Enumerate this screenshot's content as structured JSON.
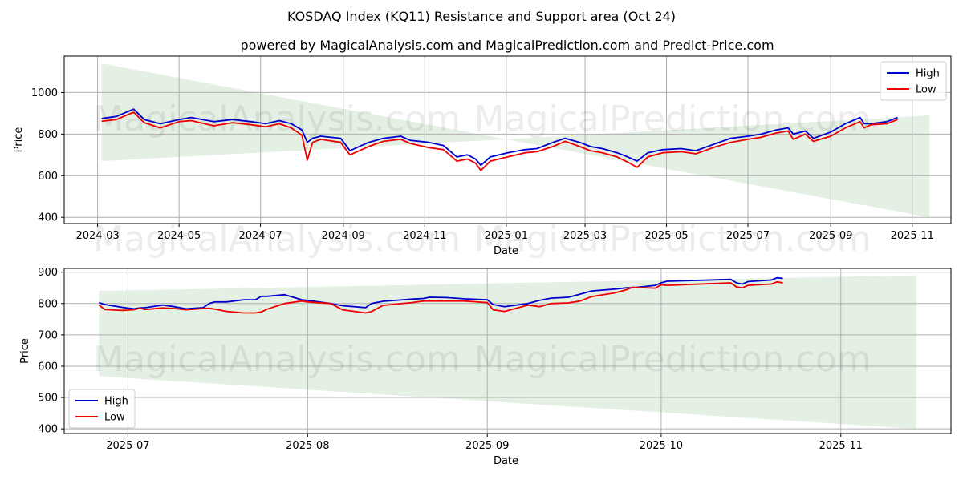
{
  "title": "KOSDAQ Index (KQ11) Resistance and Support area (Oct 24)",
  "subtitle": "powered by MagicalAnalysis.com and MagicalPrediction.com and Predict-Price.com",
  "watermarks": [
    "MagicalAnalysis.com",
    "MagicalPrediction.com"
  ],
  "colors": {
    "high": "#0000cc",
    "low": "#ee0000",
    "band": "#2e8b2e",
    "grid": "#b0b0b0"
  },
  "chart_data": [
    {
      "type": "line",
      "xlabel": "Date",
      "ylabel": "Price",
      "grid": true,
      "legend": "top-right",
      "xlim": [
        "2024-02-05",
        "2025-11-30"
      ],
      "ylim": [
        370,
        1175
      ],
      "x_ticks": [
        "2024-03",
        "2024-05",
        "2024-07",
        "2024-09",
        "2024-11",
        "2025-01",
        "2025-03",
        "2025-05",
        "2025-07",
        "2025-09",
        "2025-11"
      ],
      "y_ticks": [
        400,
        600,
        800,
        1000
      ],
      "band": {
        "x": [
          "2024-03-04",
          "2025-01-01",
          "2025-11-14"
        ],
        "upper": [
          1140,
          775,
          890
        ],
        "lower": [
          670,
          775,
          400
        ]
      },
      "series": [
        {
          "name": "High",
          "x": [
            "2024-03-04",
            "2024-03-15",
            "2024-03-28",
            "2024-04-05",
            "2024-04-17",
            "2024-05-01",
            "2024-05-10",
            "2024-05-27",
            "2024-06-10",
            "2024-06-24",
            "2024-07-05",
            "2024-07-15",
            "2024-07-24",
            "2024-08-01",
            "2024-08-05",
            "2024-08-09",
            "2024-08-15",
            "2024-08-30",
            "2024-09-06",
            "2024-09-20",
            "2024-10-01",
            "2024-10-14",
            "2024-10-21",
            "2024-11-04",
            "2024-11-15",
            "2024-11-25",
            "2024-12-03",
            "2024-12-09",
            "2024-12-13",
            "2024-12-20",
            "2025-01-02",
            "2025-01-15",
            "2025-01-24",
            "2025-02-05",
            "2025-02-14",
            "2025-02-25",
            "2025-03-05",
            "2025-03-14",
            "2025-03-25",
            "2025-04-02",
            "2025-04-09",
            "2025-04-17",
            "2025-04-28",
            "2025-05-12",
            "2025-05-23",
            "2025-06-05",
            "2025-06-18",
            "2025-07-01",
            "2025-07-11",
            "2025-07-22",
            "2025-07-31",
            "2025-08-04",
            "2025-08-13",
            "2025-08-19",
            "2025-09-01",
            "2025-09-12",
            "2025-09-23",
            "2025-09-26",
            "2025-10-01",
            "2025-10-13",
            "2025-10-21"
          ],
          "values": [
            875,
            885,
            920,
            870,
            850,
            870,
            880,
            860,
            870,
            860,
            850,
            865,
            850,
            820,
            760,
            780,
            790,
            780,
            720,
            760,
            780,
            790,
            770,
            760,
            745,
            690,
            700,
            680,
            650,
            690,
            710,
            725,
            730,
            760,
            780,
            760,
            740,
            730,
            710,
            690,
            670,
            710,
            725,
            730,
            720,
            750,
            780,
            790,
            800,
            820,
            830,
            800,
            815,
            780,
            810,
            850,
            880,
            850,
            850,
            860,
            880
          ]
        },
        {
          "name": "Low",
          "x": [
            "2024-03-04",
            "2024-03-15",
            "2024-03-28",
            "2024-04-05",
            "2024-04-17",
            "2024-05-01",
            "2024-05-10",
            "2024-05-27",
            "2024-06-10",
            "2024-06-24",
            "2024-07-05",
            "2024-07-15",
            "2024-07-24",
            "2024-08-01",
            "2024-08-05",
            "2024-08-09",
            "2024-08-15",
            "2024-08-30",
            "2024-09-06",
            "2024-09-20",
            "2024-10-01",
            "2024-10-14",
            "2024-10-21",
            "2024-11-04",
            "2024-11-15",
            "2024-11-25",
            "2024-12-03",
            "2024-12-09",
            "2024-12-13",
            "2024-12-20",
            "2025-01-02",
            "2025-01-15",
            "2025-01-24",
            "2025-02-05",
            "2025-02-14",
            "2025-02-25",
            "2025-03-05",
            "2025-03-14",
            "2025-03-25",
            "2025-04-02",
            "2025-04-09",
            "2025-04-17",
            "2025-04-28",
            "2025-05-12",
            "2025-05-23",
            "2025-06-05",
            "2025-06-18",
            "2025-07-01",
            "2025-07-11",
            "2025-07-22",
            "2025-07-31",
            "2025-08-04",
            "2025-08-13",
            "2025-08-19",
            "2025-09-01",
            "2025-09-12",
            "2025-09-23",
            "2025-09-26",
            "2025-10-01",
            "2025-10-13",
            "2025-10-21"
          ],
          "values": [
            862,
            870,
            905,
            855,
            830,
            860,
            865,
            840,
            855,
            845,
            835,
            850,
            830,
            795,
            675,
            760,
            775,
            760,
            700,
            740,
            765,
            775,
            755,
            735,
            725,
            670,
            680,
            660,
            625,
            670,
            690,
            710,
            715,
            740,
            765,
            740,
            720,
            710,
            690,
            665,
            640,
            690,
            710,
            715,
            705,
            735,
            760,
            775,
            785,
            805,
            815,
            775,
            800,
            765,
            790,
            830,
            860,
            830,
            845,
            850,
            870
          ]
        }
      ]
    },
    {
      "type": "line",
      "xlabel": "Date",
      "ylabel": "Price",
      "grid": true,
      "legend": "bottom-left",
      "xlim": [
        "2025-06-20",
        "2025-11-20"
      ],
      "ylim": [
        385,
        912
      ],
      "x_ticks": [
        "2025-07",
        "2025-08",
        "2025-09",
        "2025-10",
        "2025-11"
      ],
      "y_ticks": [
        400,
        500,
        600,
        700,
        800,
        900
      ],
      "band": {
        "x": [
          "2025-06-26",
          "2025-11-14"
        ],
        "upper": [
          840,
          890
        ],
        "lower": [
          568,
          400
        ]
      },
      "series": [
        {
          "name": "High",
          "x": [
            "2025-06-26",
            "2025-06-27",
            "2025-06-30",
            "2025-07-02",
            "2025-07-03",
            "2025-07-04",
            "2025-07-07",
            "2025-07-09",
            "2025-07-11",
            "2025-07-14",
            "2025-07-15",
            "2025-07-16",
            "2025-07-18",
            "2025-07-21",
            "2025-07-23",
            "2025-07-24",
            "2025-07-25",
            "2025-07-28",
            "2025-07-31",
            "2025-08-01",
            "2025-08-05",
            "2025-08-07",
            "2025-08-11",
            "2025-08-12",
            "2025-08-14",
            "2025-08-19",
            "2025-08-21",
            "2025-08-22",
            "2025-08-25",
            "2025-08-28",
            "2025-09-01",
            "2025-09-02",
            "2025-09-04",
            "2025-09-08",
            "2025-09-10",
            "2025-09-12",
            "2025-09-15",
            "2025-09-17",
            "2025-09-19",
            "2025-09-23",
            "2025-09-25",
            "2025-09-26",
            "2025-09-30",
            "2025-10-01",
            "2025-10-02",
            "2025-10-13",
            "2025-10-14",
            "2025-10-15",
            "2025-10-16",
            "2025-10-20",
            "2025-10-21",
            "2025-10-22"
          ],
          "values": [
            803,
            797,
            788,
            783,
            786,
            787,
            795,
            790,
            783,
            787,
            800,
            805,
            805,
            812,
            812,
            823,
            823,
            828,
            812,
            810,
            800,
            793,
            787,
            800,
            807,
            814,
            816,
            820,
            819,
            815,
            812,
            797,
            790,
            800,
            810,
            817,
            820,
            830,
            840,
            846,
            850,
            850,
            858,
            866,
            871,
            877,
            866,
            862,
            870,
            875,
            882,
            880
          ]
        },
        {
          "name": "Low",
          "x": [
            "2025-06-26",
            "2025-06-27",
            "2025-06-30",
            "2025-07-02",
            "2025-07-03",
            "2025-07-04",
            "2025-07-07",
            "2025-07-09",
            "2025-07-11",
            "2025-07-14",
            "2025-07-15",
            "2025-07-16",
            "2025-07-18",
            "2025-07-21",
            "2025-07-23",
            "2025-07-24",
            "2025-07-25",
            "2025-07-28",
            "2025-07-31",
            "2025-08-01",
            "2025-08-05",
            "2025-08-07",
            "2025-08-11",
            "2025-08-12",
            "2025-08-14",
            "2025-08-19",
            "2025-08-21",
            "2025-08-22",
            "2025-08-25",
            "2025-08-28",
            "2025-09-01",
            "2025-09-02",
            "2025-09-04",
            "2025-09-08",
            "2025-09-10",
            "2025-09-12",
            "2025-09-15",
            "2025-09-17",
            "2025-09-19",
            "2025-09-23",
            "2025-09-25",
            "2025-09-26",
            "2025-09-30",
            "2025-10-01",
            "2025-10-02",
            "2025-10-13",
            "2025-10-14",
            "2025-10-15",
            "2025-10-16",
            "2025-10-20",
            "2025-10-21",
            "2025-10-22"
          ],
          "values": [
            795,
            781,
            778,
            780,
            785,
            781,
            786,
            784,
            780,
            784,
            785,
            782,
            775,
            770,
            770,
            773,
            782,
            800,
            808,
            805,
            800,
            780,
            770,
            774,
            794,
            803,
            808,
            808,
            808,
            808,
            803,
            780,
            775,
            795,
            790,
            800,
            802,
            808,
            822,
            834,
            844,
            852,
            849,
            860,
            858,
            866,
            853,
            850,
            858,
            862,
            869,
            866
          ]
        }
      ]
    }
  ]
}
